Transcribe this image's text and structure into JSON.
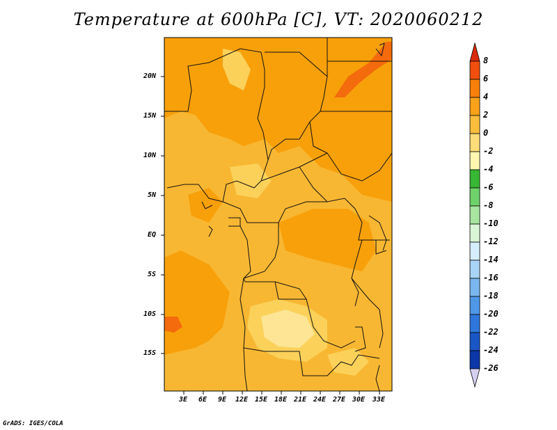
{
  "title": "Temperature at 600hPa [C], VT: 2020060212",
  "credit": "GrADS: IGES/COLA",
  "map": {
    "y_ticks": [
      "20N",
      "15N",
      "10N",
      "5N",
      "EQ",
      "5S",
      "10S",
      "15S"
    ],
    "x_ticks": [
      "3E",
      "6E",
      "9E",
      "12E",
      "15E",
      "18E",
      "21E",
      "24E",
      "27E",
      "30E",
      "33E"
    ],
    "fill_colors": {
      "base": "#f8b732",
      "warm": "#f7a00a",
      "hot": "#f36b0c",
      "cool": "#fbd15a",
      "coolest": "#fde595"
    }
  },
  "colorbar": {
    "labels": [
      "8",
      "6",
      "4",
      "2",
      "0",
      "-2",
      "-4",
      "-6",
      "-8",
      "-10",
      "-12",
      "-14",
      "-16",
      "-18",
      "-20",
      "-22",
      "-24",
      "-26"
    ],
    "colors": [
      "#d92b0e",
      "#f04f0d",
      "#f77f0a",
      "#f9a11a",
      "#fbbe3c",
      "#fddc7a",
      "#fdf6b0",
      "#37b733",
      "#6fd16a",
      "#a7e5a0",
      "#d9f5d6",
      "#d6eefb",
      "#aad4f5",
      "#7ab7ef",
      "#4f98e8",
      "#2f77dc",
      "#1a56c6",
      "#0c37a8",
      "#0b1e6e",
      "#d5d0f0"
    ]
  }
}
